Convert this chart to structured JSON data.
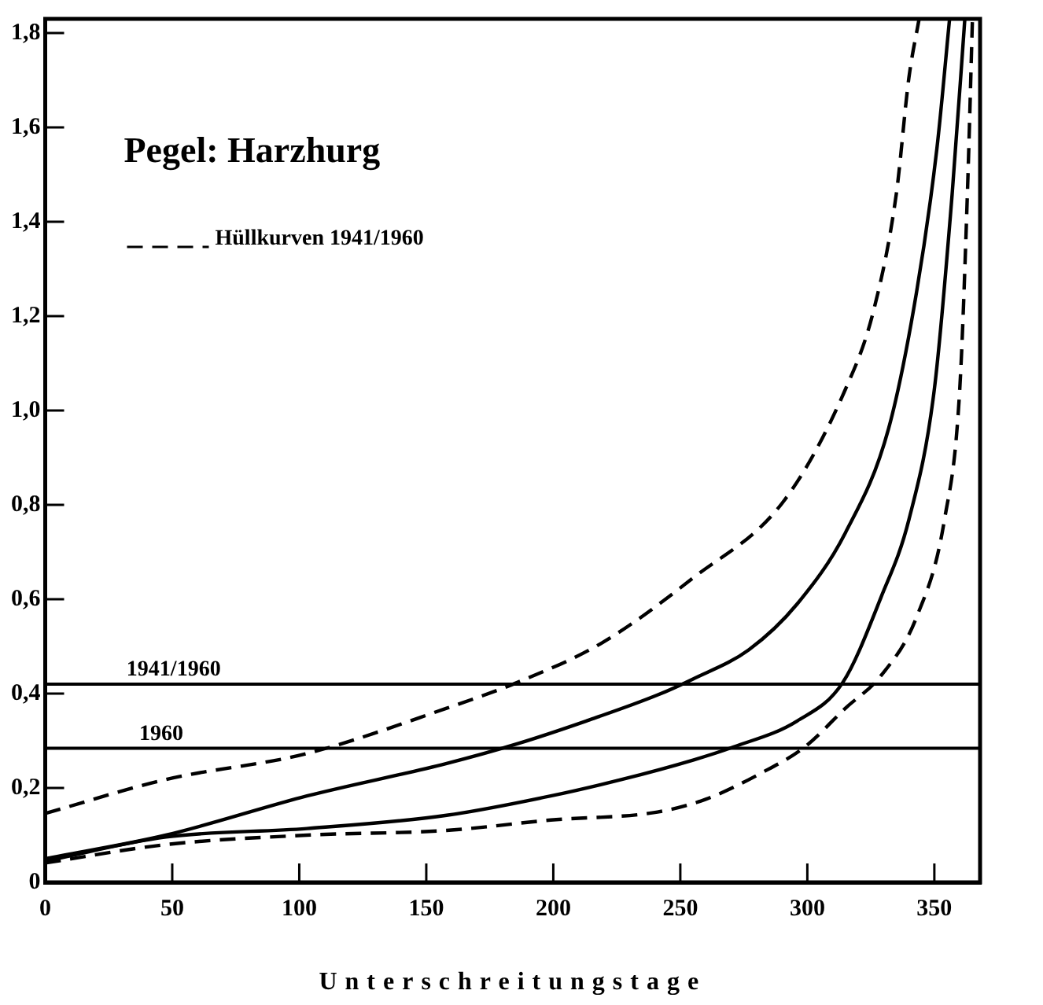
{
  "chart_data": {
    "type": "line",
    "title": "Pegel: Harzhurg",
    "xlabel": "Unterschreitungstage",
    "xlim": [
      0,
      368
    ],
    "xticks": [
      0,
      50,
      100,
      150,
      200,
      250,
      300,
      350
    ],
    "ylim": [
      0,
      1.83
    ],
    "yticks": [
      0,
      {
        "value": 0.2,
        "label": "0,2"
      },
      {
        "value": 0.4,
        "label": "0,4"
      },
      {
        "value": 0.6,
        "label": "0,6"
      },
      {
        "value": 0.8,
        "label": "0,8"
      },
      {
        "value": 1.0,
        "label": "1,0"
      },
      {
        "value": 1.2,
        "label": "1,2"
      },
      {
        "value": 1.4,
        "label": "1,4"
      },
      {
        "value": 1.6,
        "label": "1,6"
      },
      {
        "value": 1.8,
        "label": "1,8"
      }
    ],
    "grid": false,
    "legend": "top left",
    "marker": "none",
    "series": [
      {
        "name": "Hüllkurven 1941/1960",
        "color": "#000000",
        "line_style": "dashed",
        "x": [
          0,
          47.5,
          103,
          158,
          186,
          219,
          255,
          291,
          315,
          326,
          335,
          340,
          344
        ],
        "values": [
          0.146,
          0.218,
          0.273,
          0.369,
          0.424,
          0.507,
          0.645,
          0.81,
          1.045,
          1.21,
          1.458,
          1.706,
          1.83
        ]
      },
      {
        "color": "#000000",
        "line_style": "solid",
        "x": [
          0,
          47.5,
          103,
          158,
          186,
          213,
          241,
          255,
          277,
          296,
          315,
          332,
          343,
          351,
          356
        ],
        "values": [
          0.05,
          0.1,
          0.183,
          0.252,
          0.294,
          0.342,
          0.397,
          0.431,
          0.493,
          0.59,
          0.741,
          0.962,
          1.251,
          1.555,
          1.83
        ]
      },
      {
        "color": "#000000",
        "line_style": "solid",
        "x": [
          0,
          47.5,
          103,
          158,
          199,
          227,
          255,
          271,
          296,
          314,
          329,
          340,
          350,
          357,
          362
        ],
        "values": [
          0.045,
          0.096,
          0.114,
          0.142,
          0.183,
          0.218,
          0.259,
          0.287,
          0.342,
          0.424,
          0.604,
          0.769,
          1.045,
          1.458,
          1.83
        ]
      },
      {
        "color": "#000000",
        "line_style": "dashed",
        "x": [
          0,
          47.5,
          103,
          158,
          199,
          241,
          260,
          282,
          299,
          315,
          329,
          343,
          354,
          360,
          363,
          365
        ],
        "values": [
          0.041,
          0.08,
          0.1,
          0.11,
          0.132,
          0.149,
          0.176,
          0.232,
          0.287,
          0.369,
          0.438,
          0.562,
          0.769,
          1.045,
          1.458,
          1.83
        ]
      }
    ],
    "ref_lines": [
      {
        "axis": "y",
        "value": 0.42,
        "color": "#000000"
      },
      {
        "axis": "y",
        "value": 0.284,
        "color": "#000000"
      }
    ],
    "annotations": [
      {
        "text": "1941/1960",
        "x": 32,
        "y": 0.42
      },
      {
        "text": "1960",
        "x": 37,
        "y": 0.284
      }
    ]
  }
}
